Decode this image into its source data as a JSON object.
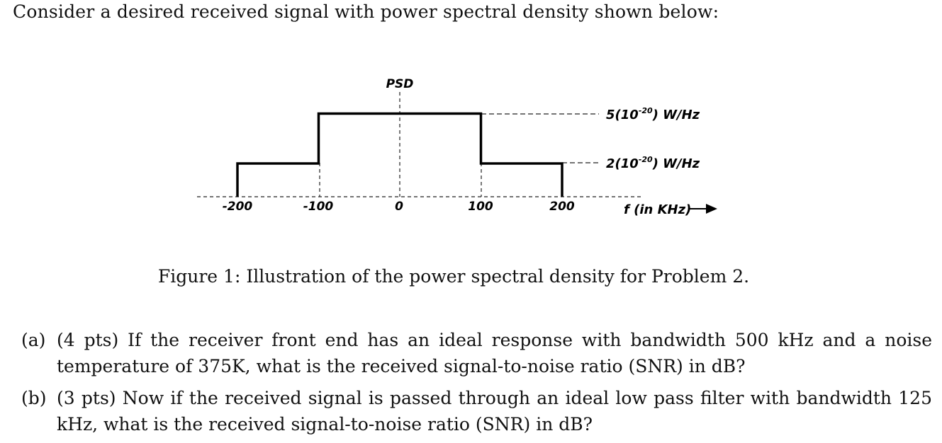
{
  "intro": "Consider a desired received signal with power spectral density shown below:",
  "chart_data": {
    "type": "line",
    "title": "PSD",
    "xlabel": "f (in KHz)",
    "x_ticks": [
      "-200",
      "-100",
      "0",
      "100",
      "200"
    ],
    "levels": [
      {
        "label": "5(10",
        "exp": "-20",
        "unit": ") W/Hz",
        "value": 5e-20
      },
      {
        "label": "2(10",
        "exp": "-20",
        "unit": ") W/Hz",
        "value": 2e-20
      }
    ],
    "x": [
      -200,
      -200,
      -100,
      -100,
      100,
      100,
      200,
      200
    ],
    "y": [
      0,
      2,
      2,
      5,
      5,
      2,
      2,
      0
    ]
  },
  "caption": "Figure 1: Illustration of the power spectral density for Problem 2.",
  "problems": [
    {
      "label": "(a)",
      "text": "(4 pts) If the receiver front end has an ideal response with bandwidth 500 kHz and a noise temperature of 375K, what is the received signal-to-noise ratio (SNR) in dB?"
    },
    {
      "label": "(b)",
      "text": "(3 pts) Now if the received signal is passed through an ideal low pass filter with bandwidth 125 kHz, what is the received signal-to-noise ratio (SNR) in dB?"
    }
  ]
}
